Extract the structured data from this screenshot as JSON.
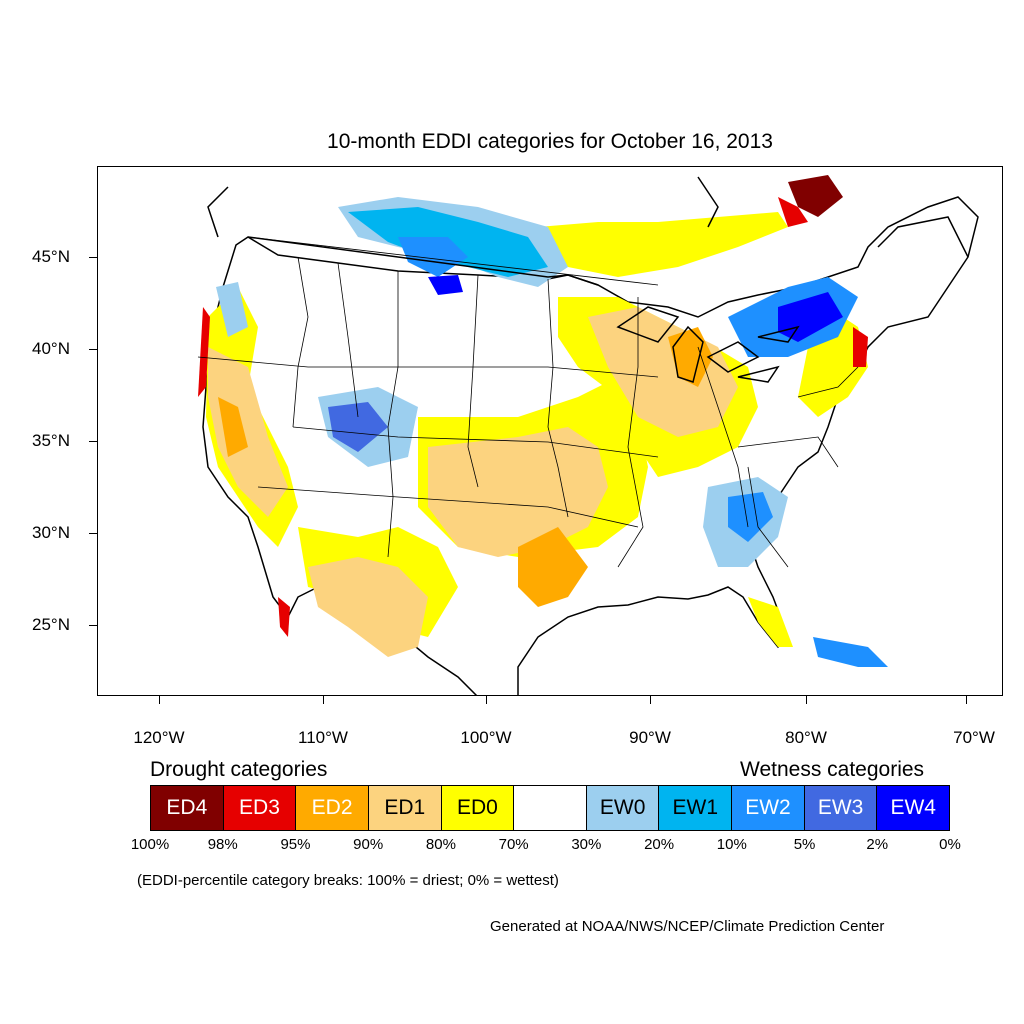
{
  "title": "10-month EDDI categories for October 16, 2013",
  "lat_labels": [
    "45°N",
    "40°N",
    "35°N",
    "30°N",
    "25°N"
  ],
  "lon_labels": [
    "120°W",
    "110°W",
    "100°W",
    "90°W",
    "80°W",
    "70°W"
  ],
  "legend": {
    "drought_title": "Drought categories",
    "wetness_title": "Wetness categories",
    "categories": [
      {
        "label": "ED4",
        "color": "#800000",
        "text_color": "#ffffff"
      },
      {
        "label": "ED3",
        "color": "#e60000",
        "text_color": "#ffffff"
      },
      {
        "label": "ED2",
        "color": "#ffaa00",
        "text_color": "#ffffff"
      },
      {
        "label": "ED1",
        "color": "#fcd37f",
        "text_color": "#000000"
      },
      {
        "label": "ED0",
        "color": "#ffff00",
        "text_color": "#000000"
      },
      {
        "label": "",
        "color": "#ffffff",
        "text_color": "#000000"
      },
      {
        "label": "EW0",
        "color": "#9ccfef",
        "text_color": "#000000"
      },
      {
        "label": "EW1",
        "color": "#00b4f0",
        "text_color": "#000000"
      },
      {
        "label": "EW2",
        "color": "#1e90ff",
        "text_color": "#ffffff"
      },
      {
        "label": "EW3",
        "color": "#4169e1",
        "text_color": "#ffffff"
      },
      {
        "label": "EW4",
        "color": "#0000ff",
        "text_color": "#ffffff"
      }
    ],
    "percent_breaks": [
      "100%",
      "98%",
      "95%",
      "90%",
      "80%",
      "70%",
      "30%",
      "20%",
      "10%",
      "5%",
      "2%",
      "0%"
    ]
  },
  "break_note": "(EDDI-percentile category breaks: 100% = driest; 0% = wettest)",
  "credit": "Generated at NOAA/NWS/NCEP/Climate Prediction Center"
}
